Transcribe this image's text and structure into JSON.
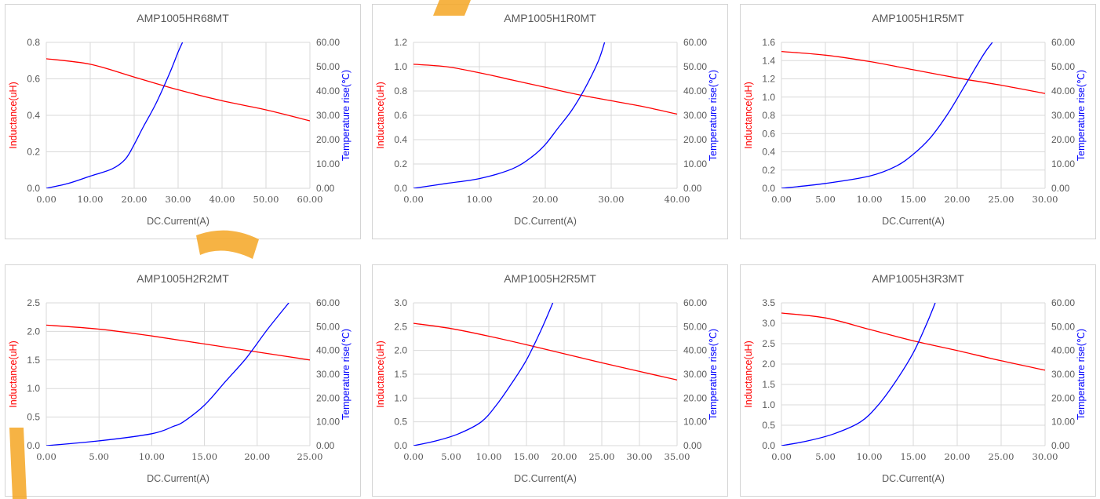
{
  "colors": {
    "inductance": "#ff0000",
    "temperature": "#0000ff",
    "grid": "#d9d9d9",
    "text": "#595959",
    "watermark": "#f5a623"
  },
  "chart_data": [
    {
      "type": "line",
      "title": "AMP1005HR68MT",
      "xlabel": "DC.Current(A)",
      "ylabel_left": "Inductance(uH)",
      "ylabel_right": "Temperature rise(℃)",
      "xlim": [
        0,
        60
      ],
      "xticks": [
        0,
        10,
        20,
        30,
        40,
        50,
        60
      ],
      "xtick_labels": [
        "0.00",
        "10.00",
        "20.00",
        "30.00",
        "40.00",
        "50.00",
        "60.00"
      ],
      "ylim_left": [
        0,
        0.8
      ],
      "yticks_left": [
        0,
        0.2,
        0.4,
        0.6,
        0.8
      ],
      "ytick_labels_left": [
        "0.0",
        "0.2",
        "0.4",
        "0.6",
        "0.8"
      ],
      "ylim_right": [
        0,
        60
      ],
      "yticks_right": [
        0,
        10,
        20,
        30,
        40,
        50,
        60
      ],
      "ytick_labels_right": [
        "0.00",
        "10.00",
        "20.00",
        "30.00",
        "40.00",
        "50.00",
        "60.00"
      ],
      "grid": true,
      "series": [
        {
          "name": "Inductance(uH)",
          "axis": "left",
          "x": [
            0,
            10,
            20,
            30,
            40,
            50,
            60
          ],
          "y": [
            0.71,
            0.68,
            0.61,
            0.54,
            0.48,
            0.43,
            0.37
          ]
        },
        {
          "name": "Temperature rise(℃)",
          "axis": "right",
          "x": [
            0,
            5,
            10,
            15,
            18,
            20,
            22,
            25,
            28,
            30,
            31
          ],
          "y": [
            0,
            2,
            5,
            8,
            12,
            18,
            25,
            35,
            47,
            56,
            60
          ]
        }
      ]
    },
    {
      "type": "line",
      "title": "AMP1005H1R0MT",
      "xlabel": "DC.Current(A)",
      "ylabel_left": "Inductance(uH)",
      "ylabel_right": "Temperature rise(℃)",
      "xlim": [
        0,
        40
      ],
      "xticks": [
        0,
        10,
        20,
        30,
        40
      ],
      "xtick_labels": [
        "0.00",
        "10.00",
        "20.00",
        "30.00",
        "40.00"
      ],
      "ylim_left": [
        0,
        1.2
      ],
      "yticks_left": [
        0,
        0.2,
        0.4,
        0.6,
        0.8,
        1.0,
        1.2
      ],
      "ytick_labels_left": [
        "0.0",
        "0.2",
        "0.4",
        "0.6",
        "0.8",
        "1.0",
        "1.2"
      ],
      "ylim_right": [
        0,
        60
      ],
      "yticks_right": [
        0,
        10,
        20,
        30,
        40,
        50,
        60
      ],
      "ytick_labels_right": [
        "0.00",
        "10.00",
        "20.00",
        "30.00",
        "40.00",
        "50.00",
        "60.00"
      ],
      "grid": true,
      "series": [
        {
          "name": "Inductance(uH)",
          "axis": "left",
          "x": [
            0,
            5,
            10,
            15,
            20,
            25,
            30,
            35,
            40
          ],
          "y": [
            1.02,
            1.0,
            0.95,
            0.89,
            0.83,
            0.77,
            0.72,
            0.67,
            0.61
          ]
        },
        {
          "name": "Temperature rise(℃)",
          "axis": "right",
          "x": [
            0,
            5,
            10,
            15,
            18,
            20,
            22,
            24,
            26,
            28,
            29
          ],
          "y": [
            0,
            2,
            4,
            8,
            13,
            18,
            25,
            32,
            41,
            52,
            60
          ]
        }
      ]
    },
    {
      "type": "line",
      "title": "AMP1005H1R5MT",
      "xlabel": "DC.Current(A)",
      "ylabel_left": "Inductance(uH)",
      "ylabel_right": "Temperature rise(℃)",
      "xlim": [
        0,
        30
      ],
      "xticks": [
        0,
        5,
        10,
        15,
        20,
        25,
        30
      ],
      "xtick_labels": [
        "0.00",
        "5.00",
        "10.00",
        "15.00",
        "20.00",
        "25.00",
        "30.00"
      ],
      "ylim_left": [
        0,
        1.6
      ],
      "yticks_left": [
        0,
        0.2,
        0.4,
        0.6,
        0.8,
        1.0,
        1.2,
        1.4,
        1.6
      ],
      "ytick_labels_left": [
        "0.0",
        "0.2",
        "0.4",
        "0.6",
        "0.8",
        "1.0",
        "1.2",
        "1.4",
        "1.6"
      ],
      "ylim_right": [
        0,
        60
      ],
      "yticks_right": [
        0,
        10,
        20,
        30,
        40,
        50,
        60
      ],
      "ytick_labels_right": [
        "0.00",
        "10.00",
        "20.00",
        "30.00",
        "40.00",
        "50.00",
        "60.00"
      ],
      "grid": true,
      "series": [
        {
          "name": "Inductance(uH)",
          "axis": "left",
          "x": [
            0,
            5,
            10,
            15,
            20,
            25,
            30
          ],
          "y": [
            1.5,
            1.46,
            1.39,
            1.3,
            1.21,
            1.13,
            1.04
          ]
        },
        {
          "name": "Temperature rise(℃)",
          "axis": "right",
          "x": [
            0,
            5,
            10,
            13,
            15,
            17,
            19,
            21,
            23,
            24
          ],
          "y": [
            0,
            2,
            5,
            9,
            14,
            21,
            31,
            43,
            55,
            60
          ]
        }
      ]
    },
    {
      "type": "line",
      "title": "AMP1005H2R2MT",
      "xlabel": "DC.Current(A)",
      "ylabel_left": "Inductance(uH)",
      "ylabel_right": "Temperature rise(℃)",
      "xlim": [
        0,
        25
      ],
      "xticks": [
        0,
        5,
        10,
        15,
        20,
        25
      ],
      "xtick_labels": [
        "0.00",
        "5.00",
        "10.00",
        "15.00",
        "20.00",
        "25.00"
      ],
      "ylim_left": [
        0,
        2.5
      ],
      "yticks_left": [
        0,
        0.5,
        1.0,
        1.5,
        2.0,
        2.5
      ],
      "ytick_labels_left": [
        "0.0",
        "0.5",
        "1.0",
        "1.5",
        "2.0",
        "2.5"
      ],
      "ylim_right": [
        0,
        60
      ],
      "yticks_right": [
        0,
        10,
        20,
        30,
        40,
        50,
        60
      ],
      "ytick_labels_right": [
        "0.00",
        "10.00",
        "20.00",
        "30.00",
        "40.00",
        "50.00",
        "60.00"
      ],
      "grid": true,
      "series": [
        {
          "name": "Inductance(uH)",
          "axis": "left",
          "x": [
            0,
            5,
            10,
            15,
            20,
            25
          ],
          "y": [
            2.11,
            2.04,
            1.92,
            1.78,
            1.64,
            1.5
          ]
        },
        {
          "name": "Temperature rise(℃)",
          "axis": "right",
          "x": [
            0,
            5,
            10,
            12,
            13,
            15,
            17,
            19,
            21,
            23
          ],
          "y": [
            0,
            2,
            5,
            8,
            10,
            17,
            27,
            37,
            49,
            60
          ]
        }
      ]
    },
    {
      "type": "line",
      "title": "AMP1005H2R5MT",
      "xlabel": "DC.Current(A)",
      "ylabel_left": "Inductance(uH)",
      "ylabel_right": "Temperature rise(℃)",
      "xlim": [
        0,
        35
      ],
      "xticks": [
        0,
        5,
        10,
        15,
        20,
        25,
        30,
        35
      ],
      "xtick_labels": [
        "0.00",
        "5.00",
        "10.00",
        "15.00",
        "20.00",
        "25.00",
        "30.00",
        "35.00"
      ],
      "ylim_left": [
        0,
        3.0
      ],
      "yticks_left": [
        0,
        0.5,
        1.0,
        1.5,
        2.0,
        2.5,
        3.0
      ],
      "ytick_labels_left": [
        "0.0",
        "0.5",
        "1.0",
        "1.5",
        "2.0",
        "2.5",
        "3.0"
      ],
      "ylim_right": [
        0,
        60
      ],
      "yticks_right": [
        0,
        10,
        20,
        30,
        40,
        50,
        60
      ],
      "ytick_labels_right": [
        "0.00",
        "10.00",
        "20.00",
        "30.00",
        "40.00",
        "50.00",
        "60.00"
      ],
      "grid": true,
      "series": [
        {
          "name": "Inductance(uH)",
          "axis": "left",
          "x": [
            0,
            5,
            10,
            15,
            20,
            25,
            30,
            35
          ],
          "y": [
            2.57,
            2.46,
            2.3,
            2.12,
            1.93,
            1.74,
            1.56,
            1.38
          ]
        },
        {
          "name": "Temperature rise(℃)",
          "axis": "right",
          "x": [
            0,
            3,
            6,
            9,
            11,
            13,
            15,
            17,
            18.5
          ],
          "y": [
            0,
            2,
            5,
            10,
            17,
            26,
            36,
            49,
            60
          ]
        }
      ]
    },
    {
      "type": "line",
      "title": "AMP1005H3R3MT",
      "xlabel": "DC.Current(A)",
      "ylabel_left": "Inductance(uH)",
      "ylabel_right": "Temperature rise(℃)",
      "xlim": [
        0,
        30
      ],
      "xticks": [
        0,
        5,
        10,
        15,
        20,
        25,
        30
      ],
      "xtick_labels": [
        "0.00",
        "5.00",
        "10.00",
        "15.00",
        "20.00",
        "25.00",
        "30.00"
      ],
      "ylim_left": [
        0,
        3.5
      ],
      "yticks_left": [
        0,
        0.5,
        1.0,
        1.5,
        2.0,
        2.5,
        3.0,
        3.5
      ],
      "ytick_labels_left": [
        "0.0",
        "0.5",
        "1.0",
        "1.5",
        "2.0",
        "2.5",
        "3.0",
        "3.5"
      ],
      "ylim_right": [
        0,
        60
      ],
      "yticks_right": [
        0,
        10,
        20,
        30,
        40,
        50,
        60
      ],
      "ytick_labels_right": [
        "0.00",
        "10.00",
        "20.00",
        "30.00",
        "40.00",
        "50.00",
        "60.00"
      ],
      "grid": true,
      "series": [
        {
          "name": "Inductance(uH)",
          "axis": "left",
          "x": [
            0,
            5,
            10,
            15,
            20,
            25,
            30
          ],
          "y": [
            3.25,
            3.13,
            2.85,
            2.57,
            2.33,
            2.08,
            1.85
          ]
        },
        {
          "name": "Temperature rise(℃)",
          "axis": "right",
          "x": [
            0,
            3,
            6,
            9,
            11,
            13,
            15,
            16.5,
            17.5
          ],
          "y": [
            0,
            2,
            5,
            10,
            17,
            27,
            39,
            51,
            60
          ]
        }
      ]
    }
  ]
}
